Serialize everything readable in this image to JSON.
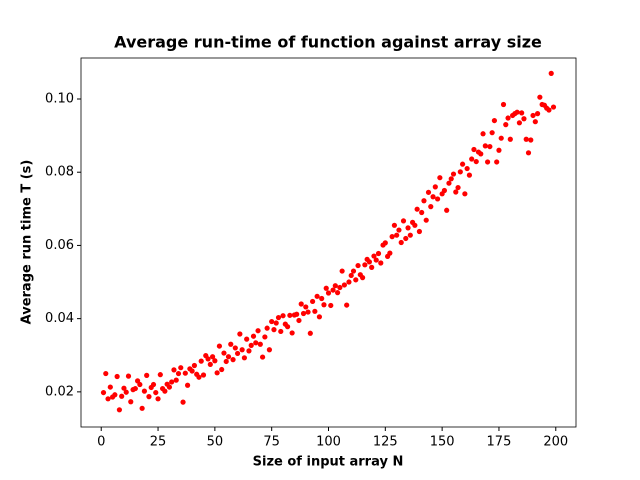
{
  "chart_data": {
    "type": "scatter",
    "title": "Average run-time of function against array size",
    "x_label": "Size of input array N",
    "y_label": "Average run time T (s)",
    "color": "#ff0000",
    "xlim": [
      -8.9,
      208.9
    ],
    "ylim": [
      0.0104,
      0.1112
    ],
    "xticks": [
      0,
      25,
      50,
      75,
      100,
      125,
      150,
      175,
      200
    ],
    "yticks": [
      0.02,
      0.04,
      0.06,
      0.08,
      {
        "value": 0.1,
        "label": "0.10"
      }
    ],
    "x": [
      1,
      2,
      3,
      4,
      5,
      6,
      7,
      8,
      9,
      10,
      11,
      12,
      13,
      14,
      15,
      16,
      17,
      18,
      19,
      20,
      21,
      22,
      23,
      24,
      25,
      26,
      27,
      28,
      29,
      30,
      31,
      32,
      33,
      34,
      35,
      36,
      37,
      38,
      39,
      40,
      41,
      42,
      43,
      44,
      45,
      46,
      47,
      48,
      49,
      50,
      51,
      52,
      53,
      54,
      55,
      56,
      57,
      58,
      59,
      60,
      61,
      62,
      63,
      64,
      65,
      66,
      67,
      68,
      69,
      70,
      71,
      72,
      73,
      74,
      75,
      76,
      77,
      78,
      79,
      80,
      81,
      82,
      83,
      84,
      85,
      86,
      87,
      88,
      89,
      90,
      91,
      92,
      93,
      94,
      95,
      96,
      97,
      98,
      99,
      100,
      101,
      102,
      103,
      104,
      105,
      106,
      107,
      108,
      109,
      110,
      111,
      112,
      113,
      114,
      115,
      116,
      117,
      118,
      119,
      120,
      121,
      122,
      123,
      124,
      125,
      126,
      127,
      128,
      129,
      130,
      131,
      132,
      133,
      134,
      135,
      136,
      137,
      138,
      139,
      140,
      141,
      142,
      143,
      144,
      145,
      146,
      147,
      148,
      149,
      150,
      151,
      152,
      153,
      154,
      155,
      156,
      157,
      158,
      159,
      160,
      161,
      162,
      163,
      164,
      165,
      166,
      167,
      168,
      169,
      170,
      171,
      172,
      173,
      174,
      175,
      176,
      177,
      178,
      179,
      180,
      181,
      182,
      183,
      184,
      185,
      186,
      187,
      188,
      189,
      190,
      191,
      192,
      193,
      194,
      195,
      196,
      197,
      198,
      199
    ],
    "values": [
      0.0198,
      0.025,
      0.0181,
      0.0213,
      0.0186,
      0.0192,
      0.0242,
      0.0151,
      0.0188,
      0.021,
      0.0199,
      0.0243,
      0.0173,
      0.0206,
      0.0209,
      0.023,
      0.022,
      0.0155,
      0.0202,
      0.0245,
      0.0187,
      0.0212,
      0.022,
      0.0198,
      0.0181,
      0.0247,
      0.0209,
      0.0202,
      0.0221,
      0.0213,
      0.0227,
      0.026,
      0.0232,
      0.025,
      0.0266,
      0.0172,
      0.0251,
      0.0218,
      0.0263,
      0.0257,
      0.0272,
      0.0248,
      0.024,
      0.0284,
      0.0246,
      0.0299,
      0.029,
      0.0275,
      0.0296,
      0.0285,
      0.0252,
      0.0325,
      0.0261,
      0.0306,
      0.0283,
      0.0296,
      0.033,
      0.0288,
      0.032,
      0.0305,
      0.0358,
      0.0315,
      0.0293,
      0.0344,
      0.0312,
      0.0327,
      0.0352,
      0.0334,
      0.0367,
      0.033,
      0.0295,
      0.035,
      0.0374,
      0.0315,
      0.0392,
      0.037,
      0.0388,
      0.0403,
      0.0365,
      0.0408,
      0.0385,
      0.0378,
      0.0409,
      0.0361,
      0.041,
      0.0412,
      0.0395,
      0.044,
      0.0414,
      0.0432,
      0.0418,
      0.036,
      0.0447,
      0.042,
      0.0461,
      0.0405,
      0.0455,
      0.0438,
      0.0483,
      0.047,
      0.0436,
      0.0478,
      0.049,
      0.0471,
      0.0485,
      0.053,
      0.0492,
      0.0437,
      0.05,
      0.0518,
      0.053,
      0.0506,
      0.0545,
      0.052,
      0.0512,
      0.0547,
      0.0562,
      0.0555,
      0.054,
      0.0571,
      0.056,
      0.0578,
      0.0552,
      0.0601,
      0.0607,
      0.057,
      0.0579,
      0.0624,
      0.0655,
      0.0628,
      0.0642,
      0.0608,
      0.0667,
      0.0619,
      0.0648,
      0.0628,
      0.0663,
      0.0655,
      0.0699,
      0.0638,
      0.069,
      0.0722,
      0.0669,
      0.0745,
      0.0706,
      0.0733,
      0.076,
      0.0727,
      0.0785,
      0.0741,
      0.075,
      0.0696,
      0.077,
      0.0782,
      0.0795,
      0.0746,
      0.0758,
      0.0801,
      0.0822,
      0.0741,
      0.081,
      0.0792,
      0.0836,
      0.0862,
      0.0829,
      0.0855,
      0.085,
      0.0905,
      0.0872,
      0.0828,
      0.087,
      0.0908,
      0.0941,
      0.0828,
      0.086,
      0.0893,
      0.0985,
      0.093,
      0.0948,
      0.089,
      0.0955,
      0.096,
      0.0964,
      0.0935,
      0.0962,
      0.0946,
      0.089,
      0.0853,
      0.0888,
      0.0955,
      0.0938,
      0.096,
      0.1005,
      0.0985,
      0.0983,
      0.0975,
      0.097,
      0.107,
      0.0978
    ]
  }
}
